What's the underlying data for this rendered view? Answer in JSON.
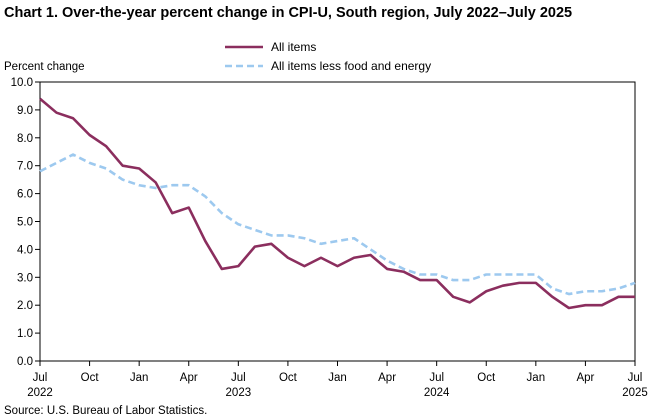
{
  "chart_data": {
    "type": "line",
    "title": "Chart 1. Over-the-year percent change in CPI-U, South region, July 2022–July 2025",
    "ylabel": "Percent change",
    "xlabel": "",
    "ylim": [
      0,
      10
    ],
    "yticks": [
      "0.0",
      "1.0",
      "2.0",
      "3.0",
      "4.0",
      "5.0",
      "6.0",
      "7.0",
      "8.0",
      "9.0",
      "10.0"
    ],
    "grid": false,
    "legend_position": "top-center",
    "x": [
      "Jul 2022",
      "Aug 2022",
      "Sep 2022",
      "Oct 2022",
      "Nov 2022",
      "Dec 2022",
      "Jan 2023",
      "Feb 2023",
      "Mar 2023",
      "Apr 2023",
      "May 2023",
      "Jun 2023",
      "Jul 2023",
      "Aug 2023",
      "Sep 2023",
      "Oct 2023",
      "Nov 2023",
      "Dec 2023",
      "Jan 2024",
      "Feb 2024",
      "Mar 2024",
      "Apr 2024",
      "May 2024",
      "Jun 2024",
      "Jul 2024",
      "Aug 2024",
      "Sep 2024",
      "Oct 2024",
      "Nov 2024",
      "Dec 2024",
      "Jan 2025",
      "Feb 2025",
      "Mar 2025",
      "Apr 2025",
      "May 2025",
      "Jun 2025",
      "Jul 2025"
    ],
    "xtick_labels": [
      {
        "index": 0,
        "month": "Jul",
        "year": "2022"
      },
      {
        "index": 3,
        "month": "Oct",
        "year": ""
      },
      {
        "index": 6,
        "month": "Jan",
        "year": ""
      },
      {
        "index": 9,
        "month": "Apr",
        "year": ""
      },
      {
        "index": 12,
        "month": "Jul",
        "year": "2023"
      },
      {
        "index": 15,
        "month": "Oct",
        "year": ""
      },
      {
        "index": 18,
        "month": "Jan",
        "year": ""
      },
      {
        "index": 21,
        "month": "Apr",
        "year": ""
      },
      {
        "index": 24,
        "month": "Jul",
        "year": "2024"
      },
      {
        "index": 27,
        "month": "Oct",
        "year": ""
      },
      {
        "index": 30,
        "month": "Jan",
        "year": ""
      },
      {
        "index": 33,
        "month": "Apr",
        "year": ""
      },
      {
        "index": 36,
        "month": "Jul",
        "year": "2025"
      }
    ],
    "series": [
      {
        "name": "All items",
        "color": "#8B2E5E",
        "style": "solid",
        "values": [
          9.4,
          8.9,
          8.7,
          8.1,
          7.7,
          7.0,
          6.9,
          6.4,
          5.3,
          5.5,
          4.3,
          3.3,
          3.4,
          4.1,
          4.2,
          3.7,
          3.4,
          3.7,
          3.4,
          3.7,
          3.8,
          3.3,
          3.2,
          2.9,
          2.9,
          2.3,
          2.1,
          2.5,
          2.7,
          2.8,
          2.8,
          2.3,
          1.9,
          2.0,
          2.0,
          2.3,
          2.3
        ]
      },
      {
        "name": "All items less food and energy",
        "color": "#9DC9EF",
        "style": "dashed",
        "values": [
          6.8,
          7.1,
          7.4,
          7.1,
          6.9,
          6.5,
          6.3,
          6.2,
          6.3,
          6.3,
          5.9,
          5.3,
          4.9,
          4.7,
          4.5,
          4.5,
          4.4,
          4.2,
          4.3,
          4.4,
          4.0,
          3.6,
          3.3,
          3.1,
          3.1,
          2.9,
          2.9,
          3.1,
          3.1,
          3.1,
          3.1,
          2.6,
          2.4,
          2.5,
          2.5,
          2.6,
          2.8
        ]
      }
    ],
    "source": "Source: U.S. Bureau of Labor Statistics."
  }
}
